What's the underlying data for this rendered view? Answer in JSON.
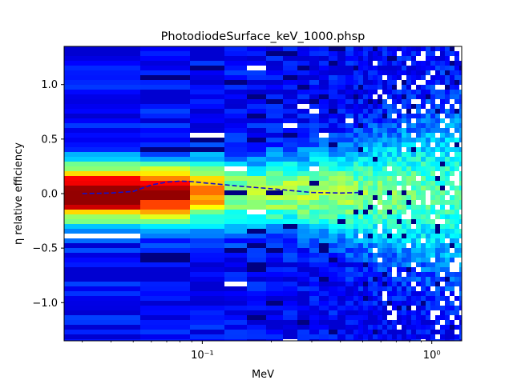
{
  "chart_data": {
    "type": "heatmap",
    "title": "PhotodiodeSurface_keV_1000.phsp",
    "xlabel": "MeV",
    "ylabel": "η relative efficiency",
    "x_scale": "log",
    "xlim": [
      0.025,
      1.35
    ],
    "ylim": [
      -1.35,
      1.35
    ],
    "x_ticks": [
      {
        "value": 0.1,
        "label": "10⁻¹"
      },
      {
        "value": 1.0,
        "label": "10⁰"
      }
    ],
    "y_ticks": [
      {
        "value": 1.0,
        "label": "1.0"
      },
      {
        "value": 0.5,
        "label": "0.5"
      },
      {
        "value": 0.0,
        "label": "0.0"
      },
      {
        "value": -0.5,
        "label": "−0.5"
      },
      {
        "value": -1.0,
        "label": "−1.0"
      }
    ],
    "colormap": "jet",
    "mean_curve": {
      "style": "dashed",
      "color": "#1010d0",
      "x": [
        0.03,
        0.04,
        0.05,
        0.06,
        0.07,
        0.08,
        0.09,
        0.1,
        0.12,
        0.15,
        0.2,
        0.3,
        0.4,
        0.5
      ],
      "y": [
        0.0,
        0.005,
        0.02,
        0.08,
        0.105,
        0.115,
        0.11,
        0.1,
        0.085,
        0.065,
        0.045,
        0.01,
        0.005,
        0.01
      ]
    }
  }
}
